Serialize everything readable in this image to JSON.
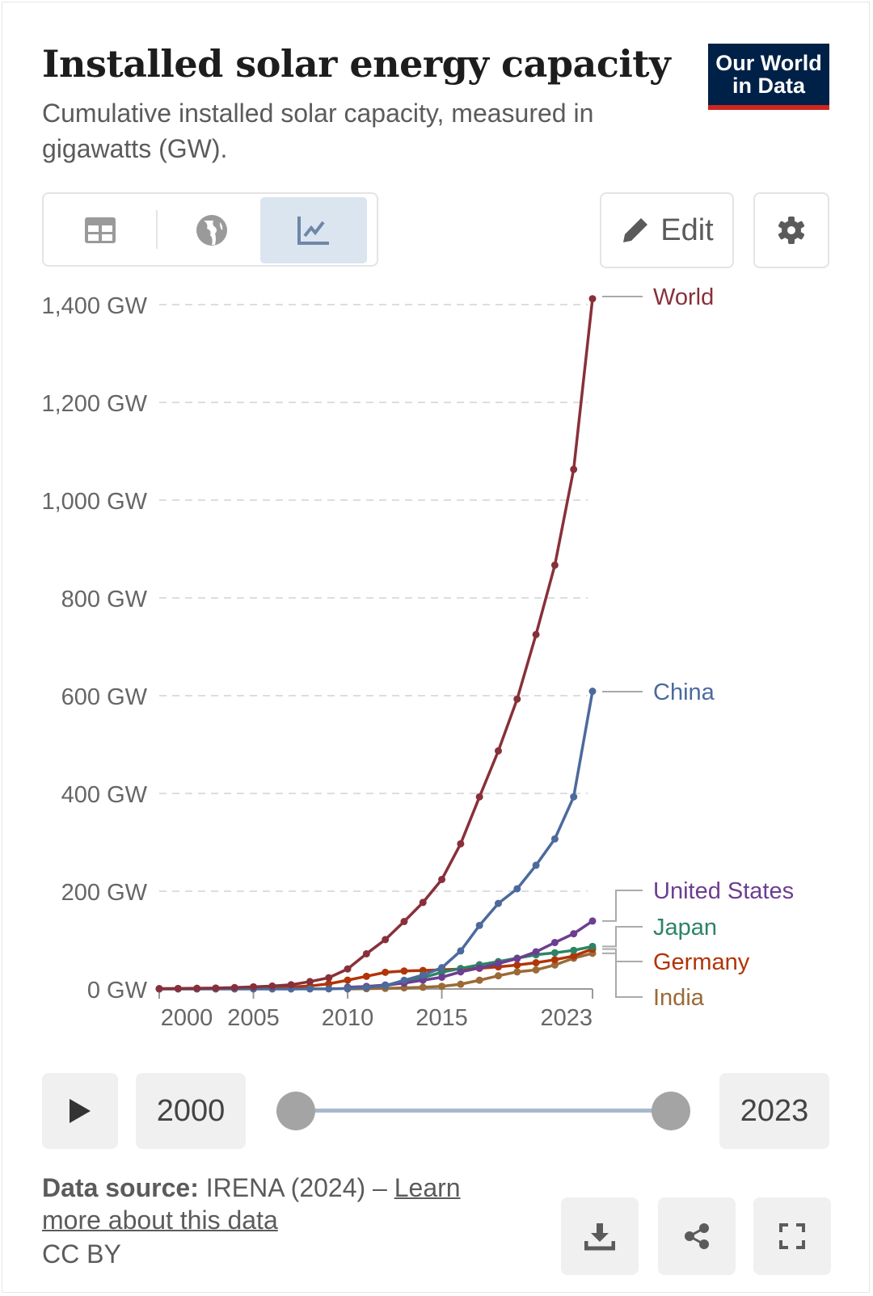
{
  "header": {
    "title": "Installed solar energy capacity",
    "subtitle": "Cumulative installed solar capacity, measured in gigawatts (GW).",
    "logo_line1": "Our World",
    "logo_line2": "in Data"
  },
  "toolbar": {
    "tabs": [
      "table",
      "map",
      "chart"
    ],
    "active_tab": "chart",
    "edit_label": "Edit"
  },
  "timeline": {
    "start_year": "2000",
    "end_year": "2023"
  },
  "footer": {
    "source_label": "Data source:",
    "source_text": "IRENA (2024) – ",
    "learn_more": "Learn more about this data",
    "license": "CC BY"
  },
  "colors": {
    "World": "#883039",
    "China": "#4c6a9c",
    "United States": "#6d3e91",
    "Japan": "#2c8465",
    "Germany": "#b13507",
    "India": "#9a6a37"
  },
  "chart_data": {
    "type": "line",
    "title": "Installed solar energy capacity",
    "ylabel": "GW",
    "ylim": [
      0,
      1400
    ],
    "yticks": [
      0,
      200,
      400,
      600,
      800,
      1000,
      1200,
      1400
    ],
    "ytick_labels": [
      "0 GW",
      "200 GW",
      "400 GW",
      "600 GW",
      "800 GW",
      "1,000 GW",
      "1,200 GW",
      "1,400 GW"
    ],
    "xticks": [
      2000,
      2005,
      2010,
      2015,
      2023
    ],
    "xtick_labels": [
      "2000",
      "2005",
      "2010",
      "2015",
      "2023"
    ],
    "xlim": [
      2000,
      2023
    ],
    "grid": true,
    "legend": "right-inline",
    "series": [
      {
        "name": "World",
        "start": 2000,
        "values": [
          0.8,
          1.1,
          1.4,
          1.9,
          2.9,
          4.4,
          5.9,
          8.6,
          15,
          23,
          41,
          72,
          101,
          138,
          177,
          224,
          297,
          393,
          487,
          593,
          725,
          867,
          1063,
          1412
        ]
      },
      {
        "name": "China",
        "start": 2000,
        "values": [
          0.02,
          0.03,
          0.04,
          0.05,
          0.06,
          0.07,
          0.08,
          0.1,
          0.14,
          0.3,
          1,
          3.1,
          6.7,
          17.7,
          28.4,
          43.5,
          77.8,
          130,
          175,
          205,
          253,
          307,
          393,
          609
        ]
      },
      {
        "name": "United States",
        "start": 2010,
        "values": [
          3,
          5.2,
          8.1,
          12,
          18,
          24,
          35,
          43,
          52,
          62,
          76,
          95,
          113,
          139
        ]
      },
      {
        "name": "Japan",
        "start": 2010,
        "values": [
          3.6,
          4.9,
          6.6,
          13.6,
          23.3,
          34.2,
          42,
          49.5,
          56,
          63,
          70,
          74,
          79,
          87
        ]
      },
      {
        "name": "Germany",
        "start": 2000,
        "values": [
          0.1,
          0.2,
          0.3,
          0.4,
          1.1,
          2.1,
          2.9,
          4.2,
          6.1,
          10.6,
          18,
          25.9,
          34.1,
          36.7,
          37.9,
          39.2,
          40.7,
          42.3,
          45.2,
          48.9,
          53.7,
          59.8,
          67.5,
          81.7
        ]
      },
      {
        "name": "India",
        "start": 2010,
        "values": [
          0.07,
          0.6,
          1.2,
          2.3,
          3.5,
          5.4,
          9.7,
          17.9,
          27,
          35,
          39,
          49,
          63,
          73
        ]
      }
    ]
  }
}
